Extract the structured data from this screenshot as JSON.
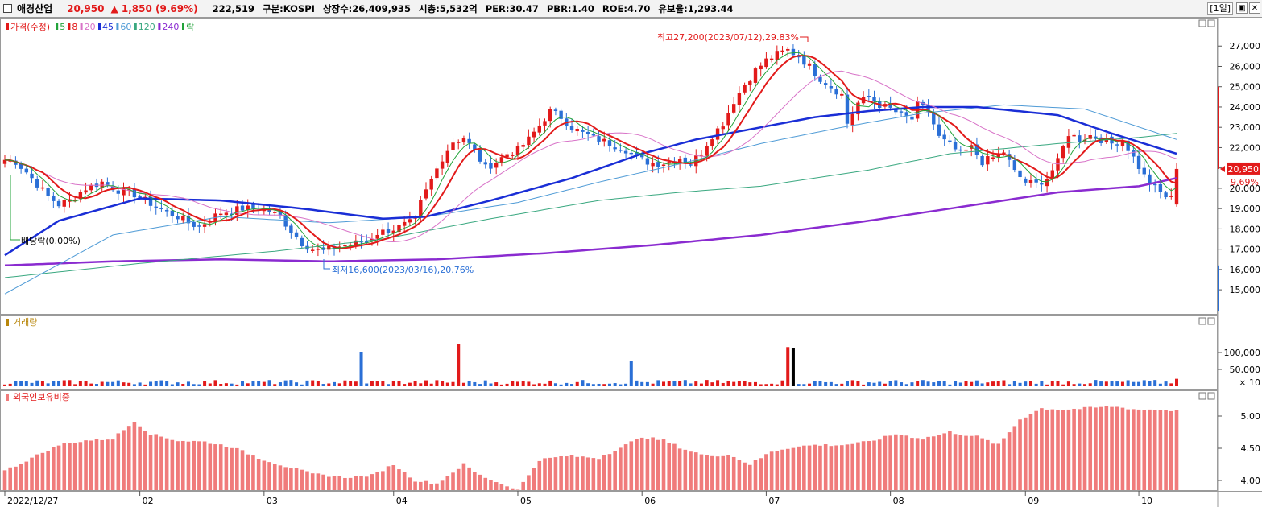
{
  "header": {
    "name": "애경산업",
    "price": "20,950",
    "change": "▲ 1,850 (9.69%)",
    "volume": "222,519",
    "market": "구분:KOSPI",
    "shares": "상장수:26,409,935",
    "cap": "시총:5,532억",
    "per": "PER:30.47",
    "pbr": "PBR:1.40",
    "roe": "ROE:4.70",
    "float": "유보율:1,293.44",
    "period_button": "[1일]",
    "restore_icon": "restore-icon",
    "close_icon": "close-icon"
  },
  "colors": {
    "up": "#e21a1a",
    "down": "#2a6fd6",
    "ma5": "#22a33a",
    "ma8": "#e21a1a",
    "ma20": "#d873c8",
    "ma45": "#1a2ed6",
    "ma60": "#4f9bd6",
    "ma120": "#3aa880",
    "ma240": "#8a2bd0",
    "foreign": "#f07b7b"
  },
  "chart_data": [
    {
      "type": "candlestick",
      "legend": [
        {
          "label": "가격(수정)",
          "color": "#e21a1a"
        },
        {
          "label": "5",
          "color": "#22a33a"
        },
        {
          "label": "8",
          "color": "#e21a1a"
        },
        {
          "label": "20",
          "color": "#d873c8"
        },
        {
          "label": "45",
          "color": "#1a2ed6"
        },
        {
          "label": "60",
          "color": "#4f9bd6"
        },
        {
          "label": "120",
          "color": "#3aa880"
        },
        {
          "label": "240",
          "color": "#8a2bd0"
        },
        {
          "label": "락",
          "color": "#22a33a"
        }
      ],
      "ylim": [
        14000,
        28000
      ],
      "yticks": [
        "15,000",
        "16,000",
        "17,000",
        "18,000",
        "19,000",
        "20,000",
        "21,000",
        "22,000",
        "23,000",
        "24,000",
        "25,000",
        "26,000",
        "27,000"
      ],
      "xticks": [
        "2022/12/27",
        "02",
        "03",
        "04",
        "05",
        "06",
        "07",
        "08",
        "09",
        "10"
      ],
      "xtick_days": [
        0,
        25,
        48,
        72,
        95,
        118,
        141,
        164,
        189,
        210
      ],
      "last_price_label": "20,950",
      "last_change_label": "9.69%",
      "annotations": {
        "high": "최고27,200(2023/07/12),29.83%",
        "low": "최저16,600(2023/03/16),20.76%",
        "dividend": "배당락(0.00%)"
      },
      "close_anchors": [
        [
          0,
          21400
        ],
        [
          2,
          21300
        ],
        [
          4,
          20800
        ],
        [
          6,
          20200
        ],
        [
          8,
          19600
        ],
        [
          10,
          19200
        ],
        [
          12,
          19400
        ],
        [
          15,
          20000
        ],
        [
          18,
          20300
        ],
        [
          21,
          19900
        ],
        [
          24,
          19700
        ],
        [
          26,
          19400
        ],
        [
          28,
          19100
        ],
        [
          30,
          18800
        ],
        [
          32,
          18600
        ],
        [
          34,
          18300
        ],
        [
          36,
          18100
        ],
        [
          38,
          18500
        ],
        [
          40,
          18800
        ],
        [
          44,
          19000
        ],
        [
          48,
          19000
        ],
        [
          51,
          18600
        ],
        [
          53,
          17900
        ],
        [
          55,
          17300
        ],
        [
          57,
          17000
        ],
        [
          59,
          16900
        ],
        [
          61,
          17100
        ],
        [
          63,
          17200
        ],
        [
          65,
          17300
        ],
        [
          67,
          17400
        ],
        [
          69,
          17800
        ],
        [
          72,
          18000
        ],
        [
          74,
          18200
        ],
        [
          76,
          18400
        ],
        [
          77,
          19300
        ],
        [
          79,
          20400
        ],
        [
          81,
          21500
        ],
        [
          83,
          22300
        ],
        [
          85,
          22500
        ],
        [
          87,
          21800
        ],
        [
          89,
          21000
        ],
        [
          91,
          21300
        ],
        [
          93,
          21700
        ],
        [
          95,
          21900
        ],
        [
          97,
          22400
        ],
        [
          99,
          23100
        ],
        [
          101,
          23800
        ],
        [
          103,
          23500
        ],
        [
          105,
          23000
        ],
        [
          107,
          22700
        ],
        [
          109,
          22500
        ],
        [
          111,
          22300
        ],
        [
          113,
          22100
        ],
        [
          115,
          21900
        ],
        [
          117,
          21500
        ],
        [
          119,
          21300
        ],
        [
          121,
          21200
        ],
        [
          123,
          21300
        ],
        [
          125,
          21500
        ],
        [
          127,
          21200
        ],
        [
          129,
          21800
        ],
        [
          131,
          22600
        ],
        [
          133,
          23200
        ],
        [
          135,
          24300
        ],
        [
          137,
          25100
        ],
        [
          139,
          25800
        ],
        [
          141,
          26300
        ],
        [
          143,
          26600
        ],
        [
          145,
          26800
        ],
        [
          147,
          26500
        ],
        [
          149,
          26000
        ],
        [
          151,
          25400
        ],
        [
          153,
          25000
        ],
        [
          155,
          24600
        ],
        [
          156,
          23200
        ],
        [
          158,
          24200
        ],
        [
          160,
          24500
        ],
        [
          162,
          24100
        ],
        [
          164,
          23900
        ],
        [
          166,
          23600
        ],
        [
          168,
          23400
        ],
        [
          169,
          24100
        ],
        [
          171,
          23800
        ],
        [
          173,
          22500
        ],
        [
          175,
          22100
        ],
        [
          177,
          21700
        ],
        [
          179,
          22000
        ],
        [
          181,
          21300
        ],
        [
          183,
          21500
        ],
        [
          185,
          21800
        ],
        [
          187,
          20800
        ],
        [
          189,
          20300
        ],
        [
          191,
          20200
        ],
        [
          193,
          20500
        ],
        [
          195,
          21300
        ],
        [
          197,
          22700
        ],
        [
          199,
          22400
        ],
        [
          201,
          22600
        ],
        [
          203,
          22400
        ],
        [
          205,
          22200
        ],
        [
          207,
          22400
        ],
        [
          209,
          21500
        ],
        [
          211,
          20600
        ],
        [
          213,
          20000
        ],
        [
          215,
          19600
        ],
        [
          216,
          19500
        ],
        [
          217,
          20950
        ]
      ],
      "ma_lines": {
        "ma45": [
          [
            0,
            16700
          ],
          [
            10,
            18400
          ],
          [
            25,
            19500
          ],
          [
            40,
            19400
          ],
          [
            55,
            19000
          ],
          [
            70,
            18500
          ],
          [
            78,
            18600
          ],
          [
            90,
            19400
          ],
          [
            105,
            20500
          ],
          [
            118,
            21700
          ],
          [
            128,
            22400
          ],
          [
            140,
            23000
          ],
          [
            150,
            23500
          ],
          [
            160,
            23800
          ],
          [
            170,
            24000
          ],
          [
            180,
            24000
          ],
          [
            195,
            23600
          ],
          [
            205,
            22700
          ],
          [
            217,
            21700
          ]
        ],
        "ma60": [
          [
            0,
            14800
          ],
          [
            20,
            17700
          ],
          [
            40,
            18600
          ],
          [
            60,
            18300
          ],
          [
            78,
            18600
          ],
          [
            95,
            19300
          ],
          [
            110,
            20300
          ],
          [
            125,
            21200
          ],
          [
            140,
            22200
          ],
          [
            155,
            23000
          ],
          [
            170,
            23700
          ],
          [
            185,
            24100
          ],
          [
            200,
            23900
          ],
          [
            217,
            22400
          ]
        ],
        "ma120": [
          [
            0,
            15600
          ],
          [
            25,
            16300
          ],
          [
            50,
            16900
          ],
          [
            70,
            17500
          ],
          [
            90,
            18500
          ],
          [
            110,
            19400
          ],
          [
            125,
            19800
          ],
          [
            140,
            20100
          ],
          [
            160,
            20900
          ],
          [
            175,
            21700
          ],
          [
            195,
            22200
          ],
          [
            210,
            22500
          ],
          [
            217,
            22700
          ]
        ],
        "ma240": [
          [
            0,
            16200
          ],
          [
            20,
            16400
          ],
          [
            40,
            16500
          ],
          [
            60,
            16400
          ],
          [
            80,
            16500
          ],
          [
            100,
            16800
          ],
          [
            120,
            17200
          ],
          [
            140,
            17700
          ],
          [
            160,
            18400
          ],
          [
            180,
            19200
          ],
          [
            195,
            19800
          ],
          [
            210,
            20100
          ],
          [
            217,
            20500
          ]
        ]
      }
    },
    {
      "type": "bar",
      "title": "거래량",
      "yticks": [
        "100,000",
        "50,000"
      ],
      "unit_label": "× 10",
      "spikes": [
        [
          66,
          100000
        ],
        [
          84,
          125000
        ],
        [
          116,
          76000
        ],
        [
          145,
          116000
        ],
        [
          146,
          112000
        ]
      ]
    },
    {
      "type": "bar",
      "title": "외국인보유비중",
      "yticks": [
        "5.00",
        "4.50",
        "4.00"
      ],
      "ylim": [
        3.85,
        5.25
      ],
      "anchors": [
        [
          0,
          4.15
        ],
        [
          5,
          4.35
        ],
        [
          10,
          4.55
        ],
        [
          15,
          4.62
        ],
        [
          20,
          4.65
        ],
        [
          24,
          4.92
        ],
        [
          27,
          4.72
        ],
        [
          32,
          4.62
        ],
        [
          37,
          4.6
        ],
        [
          42,
          4.52
        ],
        [
          47,
          4.35
        ],
        [
          52,
          4.22
        ],
        [
          57,
          4.1
        ],
        [
          63,
          4.05
        ],
        [
          68,
          4.08
        ],
        [
          72,
          4.25
        ],
        [
          76,
          4.0
        ],
        [
          80,
          3.95
        ],
        [
          85,
          4.25
        ],
        [
          88,
          4.08
        ],
        [
          92,
          3.95
        ],
        [
          95,
          3.85
        ],
        [
          99,
          4.32
        ],
        [
          104,
          4.38
        ],
        [
          110,
          4.35
        ],
        [
          115,
          4.55
        ],
        [
          118,
          4.68
        ],
        [
          122,
          4.62
        ],
        [
          126,
          4.48
        ],
        [
          130,
          4.38
        ],
        [
          134,
          4.4
        ],
        [
          138,
          4.25
        ],
        [
          142,
          4.45
        ],
        [
          146,
          4.52
        ],
        [
          150,
          4.55
        ],
        [
          155,
          4.55
        ],
        [
          160,
          4.6
        ],
        [
          165,
          4.72
        ],
        [
          170,
          4.65
        ],
        [
          175,
          4.75
        ],
        [
          180,
          4.68
        ],
        [
          184,
          4.55
        ],
        [
          188,
          4.95
        ],
        [
          192,
          5.12
        ],
        [
          196,
          5.1
        ],
        [
          200,
          5.12
        ],
        [
          205,
          5.15
        ],
        [
          210,
          5.1
        ],
        [
          215,
          5.1
        ],
        [
          217,
          5.08
        ]
      ]
    }
  ]
}
